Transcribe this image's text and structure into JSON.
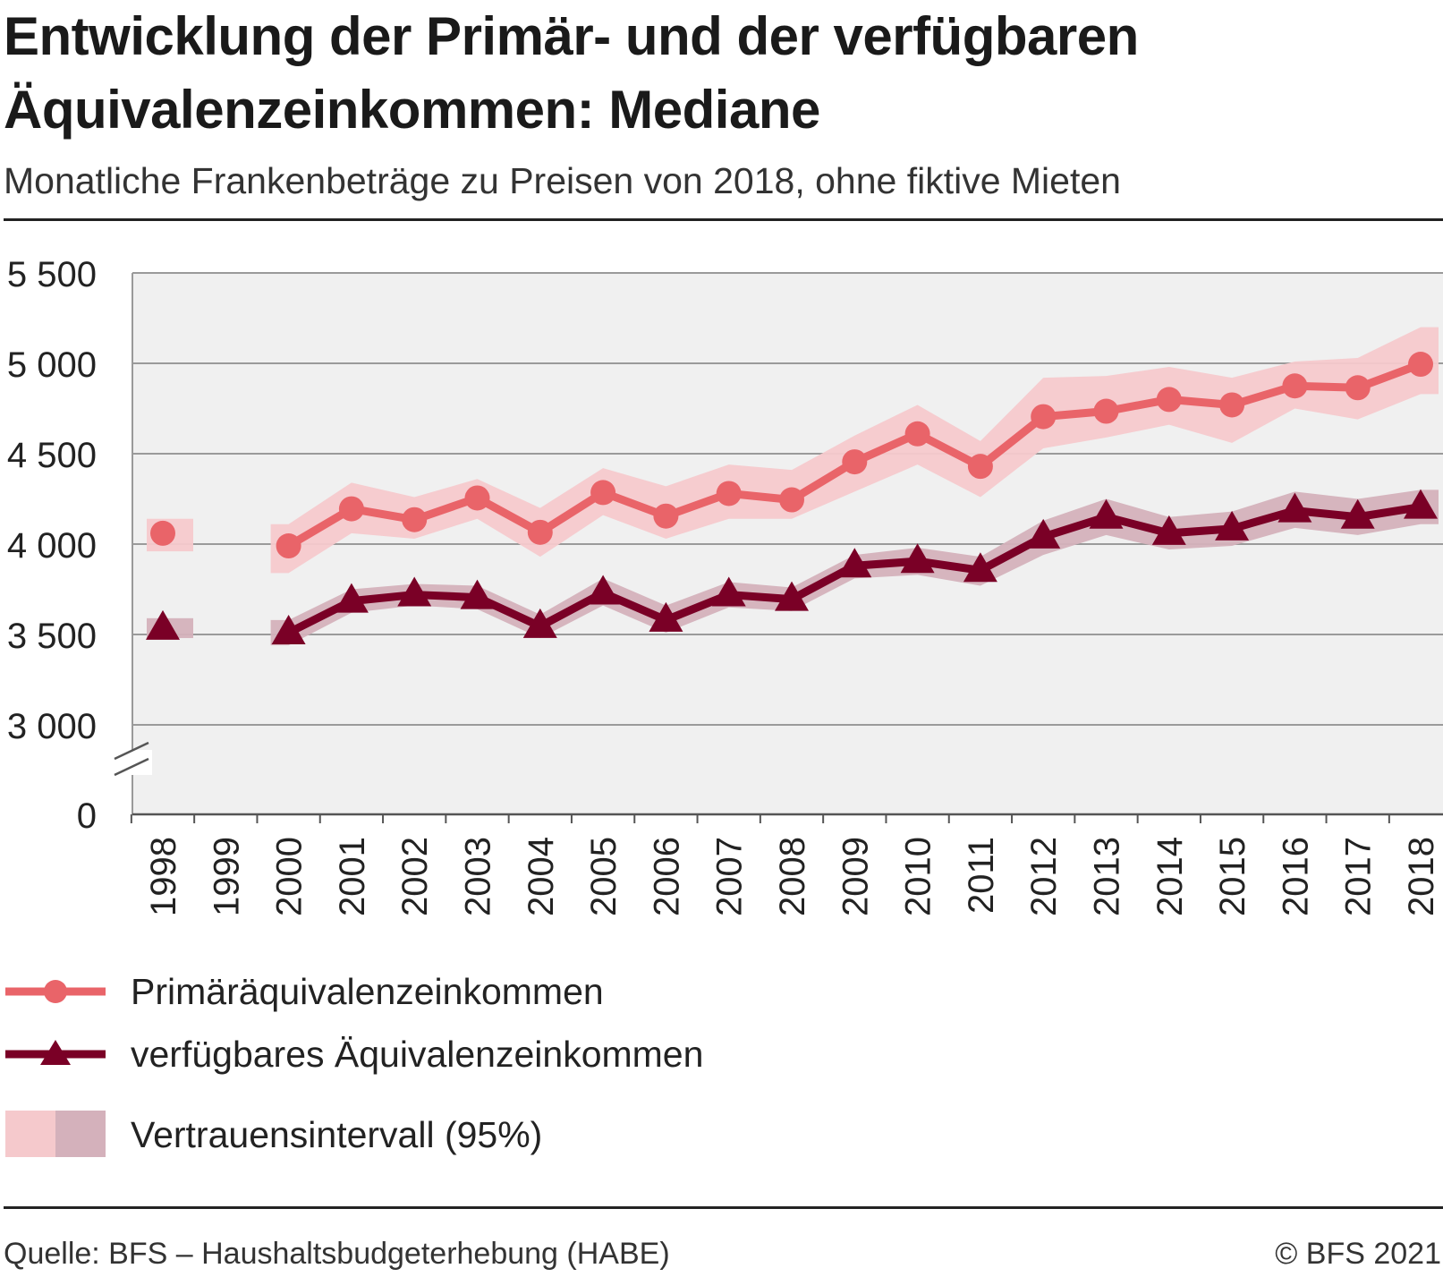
{
  "header": {
    "title_line1": "Entwicklung der Primär- und der verfügbaren",
    "title_line2": "Äquivalenzeinkommen: Mediane",
    "subtitle": "Monatliche Frankenbeträge zu Preisen von 2018, ohne fiktive Mieten"
  },
  "colors": {
    "primary": "#e96469",
    "primary_band": "#f5c9cc",
    "disposable": "#7a0026",
    "disposable_band": "#d4b1bb",
    "plot_background": "#f0f0f0",
    "gridline": "#9a9a9a"
  },
  "chart_data": {
    "type": "line",
    "x": [
      "1998",
      "1999",
      "2000",
      "2001",
      "2002",
      "2003",
      "2004",
      "2005",
      "2006",
      "2007",
      "2008",
      "2009",
      "2010",
      "2011",
      "2012",
      "2013",
      "2014",
      "2015",
      "2016",
      "2017",
      "2018"
    ],
    "y_ticks": [
      0,
      3000,
      3500,
      4000,
      4500,
      5000,
      5500
    ],
    "y_tick_labels": [
      "0",
      "3 000",
      "3 500",
      "4 000",
      "4 500",
      "5 000",
      "5 500"
    ],
    "y_axis_break": [
      0,
      3000
    ],
    "ylim": [
      3000,
      5500
    ],
    "grid": true,
    "legend_placement": "bottom",
    "series": [
      {
        "name": "Primäräquivalenzeinkommen",
        "marker": "circle",
        "values": [
          4060,
          null,
          3990,
          4195,
          4135,
          4255,
          4065,
          4285,
          4155,
          4280,
          4245,
          4455,
          4610,
          4430,
          4705,
          4735,
          4800,
          4770,
          4875,
          4865,
          4995
        ],
        "ci_lower": [
          3960,
          null,
          3840,
          4060,
          4030,
          4140,
          3930,
          4160,
          4030,
          4140,
          4140,
          4290,
          4440,
          4260,
          4530,
          4590,
          4660,
          4560,
          4750,
          4690,
          4830
        ],
        "ci_upper": [
          4140,
          null,
          4110,
          4340,
          4260,
          4360,
          4200,
          4420,
          4320,
          4440,
          4410,
          4600,
          4770,
          4570,
          4920,
          4930,
          4980,
          4920,
          5010,
          5030,
          5200
        ]
      },
      {
        "name": "verfügbares Äquivalenzeinkommen",
        "marker": "triangle",
        "values": [
          3535,
          null,
          3510,
          3685,
          3720,
          3705,
          3545,
          3730,
          3580,
          3720,
          3695,
          3880,
          3905,
          3855,
          4040,
          4150,
          4060,
          4085,
          4185,
          4150,
          4205
        ],
        "ci_lower": [
          3480,
          null,
          3440,
          3620,
          3660,
          3640,
          3480,
          3660,
          3510,
          3650,
          3630,
          3810,
          3830,
          3770,
          3940,
          4050,
          3970,
          3990,
          4090,
          4050,
          4110
        ],
        "ci_upper": [
          3590,
          null,
          3580,
          3750,
          3780,
          3770,
          3610,
          3810,
          3660,
          3790,
          3760,
          3940,
          3980,
          3930,
          4130,
          4250,
          4150,
          4180,
          4290,
          4250,
          4300
        ]
      }
    ]
  },
  "legend": {
    "primary_label": "Primäräquivalenzeinkommen",
    "disposable_label": "verfügbares Äquivalenzeinkommen",
    "ci_label": "Vertrauensintervall (95%)"
  },
  "footer": {
    "source": "Quelle: BFS – Haushaltsbudgeterhebung (HABE)",
    "copyright": "© BFS 2021"
  }
}
